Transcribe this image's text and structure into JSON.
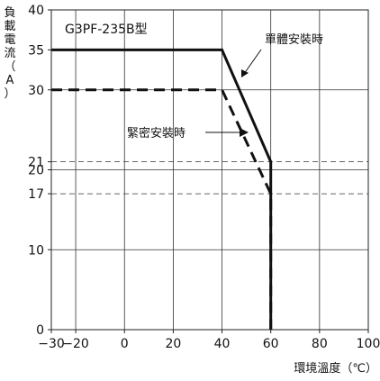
{
  "chart_data": {
    "type": "line",
    "model_label": "G3PF-235B型",
    "ylabel_chars": [
      "負",
      "載",
      "電",
      "流",
      "（",
      "A",
      "）"
    ],
    "xlabel": "環境溫度（℃）",
    "xlim": [
      -30,
      100
    ],
    "ylim": [
      0,
      40
    ],
    "x_ticks": [
      -30,
      -20,
      0,
      20,
      40,
      60,
      80,
      100
    ],
    "x_tick_labels": [
      "−30",
      "−20",
      "0",
      "20",
      "40",
      "60",
      "80",
      "100"
    ],
    "y_ticks": [
      0,
      10,
      17,
      20,
      21,
      30,
      35,
      40
    ],
    "vertical_grid_x": [
      -20,
      0,
      20,
      40,
      60,
      80
    ],
    "horizontal_grid_y": [
      10,
      20,
      30
    ],
    "dashed_reference_y": [
      17,
      21
    ],
    "series": [
      {
        "name": "單體安裝時",
        "style": "solid",
        "x": [
          -30,
          40,
          60,
          60
        ],
        "y": [
          35,
          35,
          21,
          0
        ]
      },
      {
        "name": "緊密安裝時",
        "style": "dashed",
        "x": [
          -30,
          40,
          60,
          60
        ],
        "y": [
          30,
          30,
          17,
          0
        ]
      }
    ],
    "grid": true
  }
}
